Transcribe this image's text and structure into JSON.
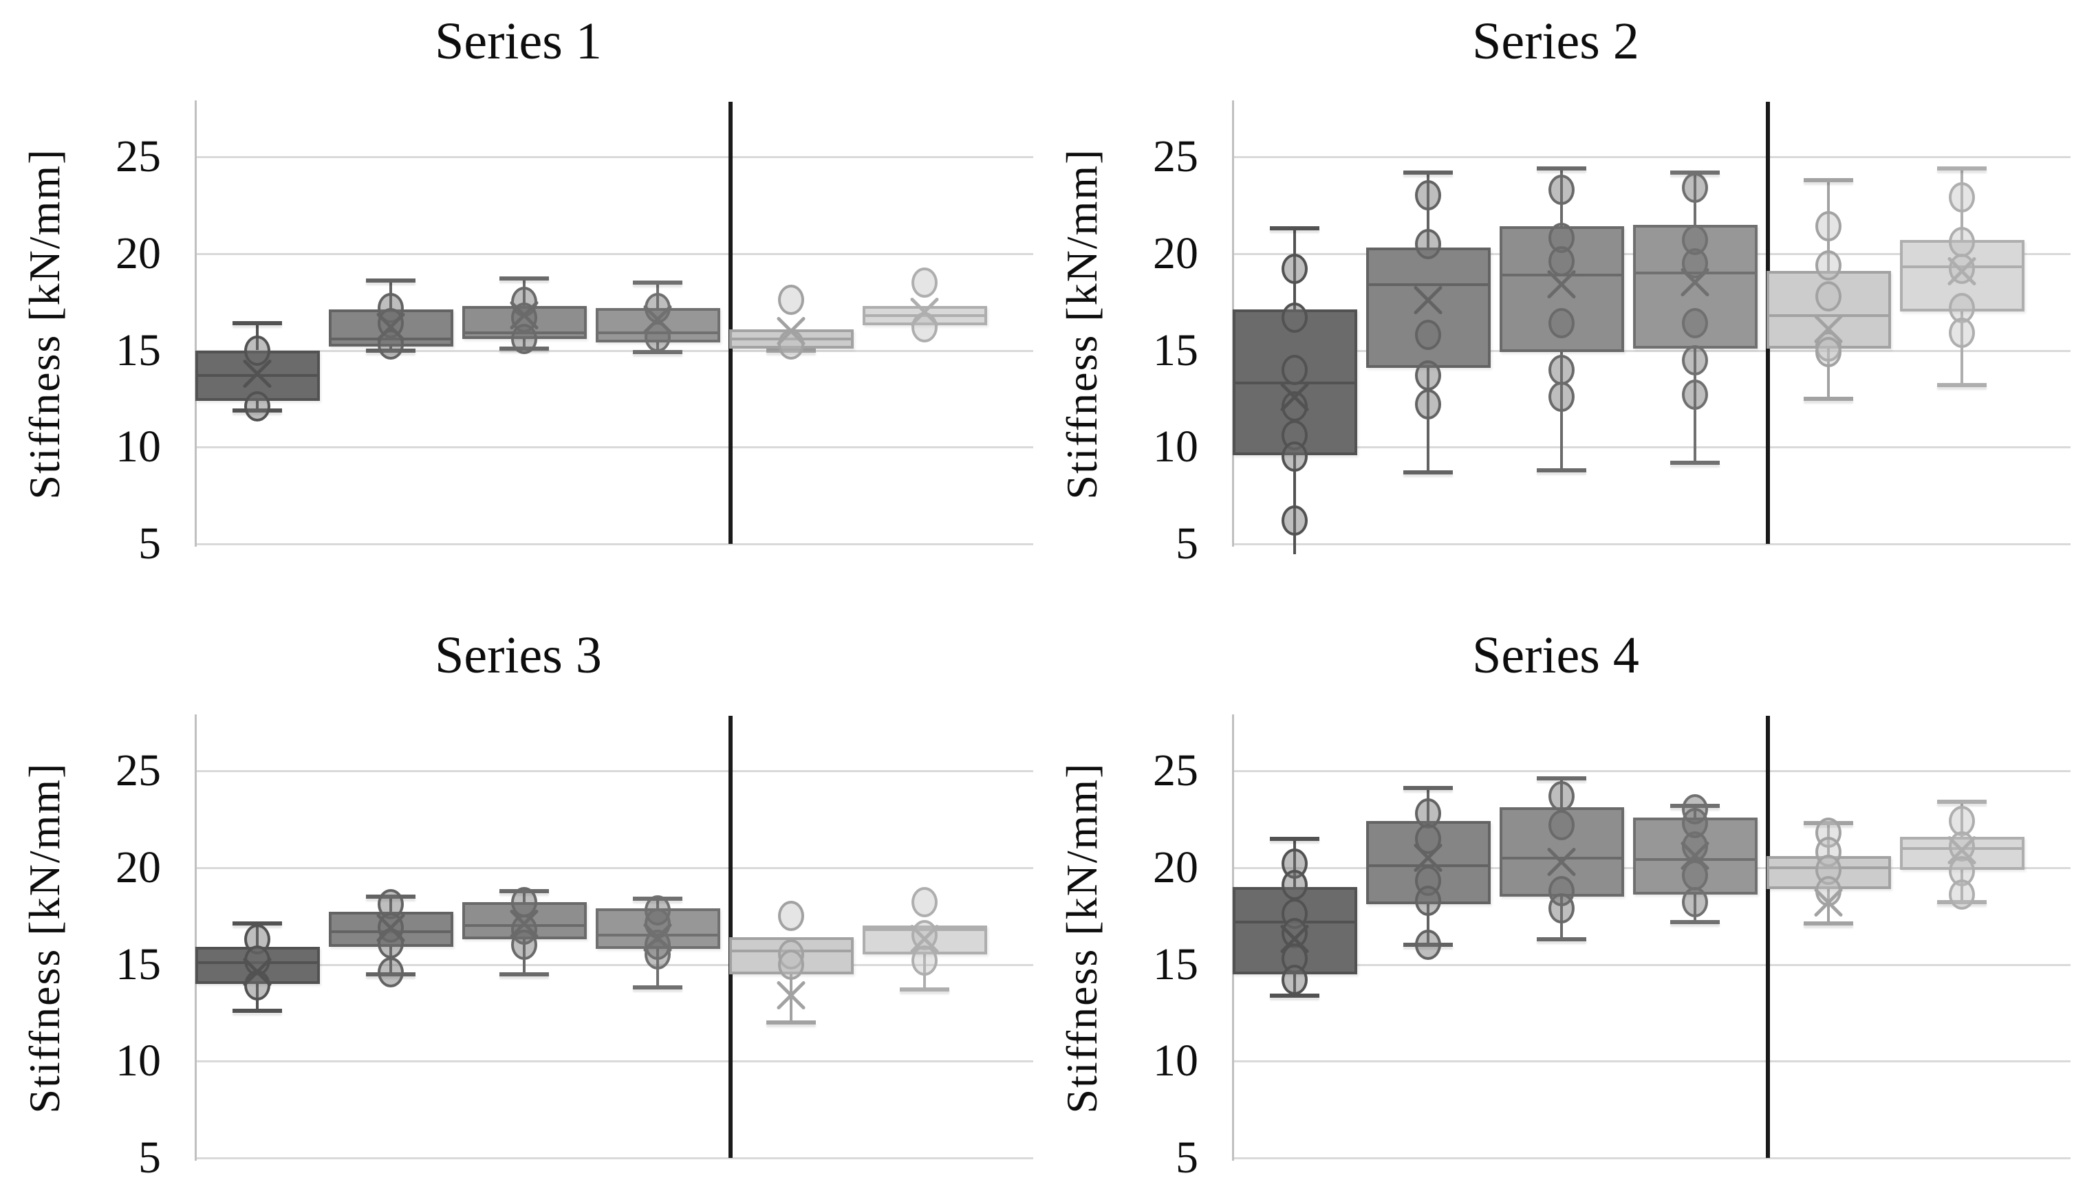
{
  "style": {
    "background": "#ffffff",
    "gridline_color": "#d9d9d9",
    "axis_color": "#c0c0c0",
    "divider_color": "#1a1a1a",
    "text_color": "#0d0d0d",
    "group_fills": [
      "#6b6b6b",
      "#858585",
      "#8e8e8e",
      "#979797",
      "#cccccc",
      "#d8d8d8"
    ],
    "group_strokes": [
      "#525252",
      "#636363",
      "#6a6a6a",
      "#707070",
      "#a2a2a2",
      "#aeaeae"
    ],
    "point_fills": [
      "rgba(110,110,110,0.45)",
      "rgba(110,110,110,0.45)",
      "rgba(110,110,110,0.45)",
      "rgba(110,110,110,0.45)",
      "rgba(190,190,190,0.40)",
      "rgba(190,190,190,0.40)"
    ]
  },
  "chart_data": [
    {
      "type": "boxplot",
      "title": "Series 1",
      "ylabel": "Stiffness [kN/mm]",
      "ylim": [
        4.4,
        27.9
      ],
      "y_ticks": [
        25,
        20,
        15,
        10,
        5
      ],
      "grid": true,
      "legend": "none",
      "divider_after_group": 4,
      "groups": [
        {
          "whisker_high": 16.4,
          "q3": 15.0,
          "median": 13.7,
          "mean": 13.8,
          "q1": 12.4,
          "whisker_low": 11.9,
          "points": [
            15.0,
            12.1
          ]
        },
        {
          "whisker_high": 18.6,
          "q3": 17.1,
          "median": 15.6,
          "mean": 16.2,
          "q1": 15.2,
          "whisker_low": 15.0,
          "points": [
            17.2,
            16.4,
            15.3
          ]
        },
        {
          "whisker_high": 18.7,
          "q3": 17.3,
          "median": 15.9,
          "mean": 16.8,
          "q1": 15.6,
          "whisker_low": 15.1,
          "points": [
            17.5,
            16.7,
            15.6
          ]
        },
        {
          "whisker_high": 18.5,
          "q3": 17.2,
          "median": 15.9,
          "mean": 16.6,
          "q1": 15.4,
          "whisker_low": 14.9,
          "points": [
            17.2,
            15.7
          ]
        },
        {
          "whisker_high": 16.1,
          "q3": 16.1,
          "median": 15.6,
          "mean": 16.0,
          "q1": 15.1,
          "whisker_low": 15.0,
          "points": [
            17.6,
            15.3
          ]
        },
        {
          "whisker_high": 17.3,
          "q3": 17.3,
          "median": 16.8,
          "mean": 17.0,
          "q1": 16.3,
          "whisker_low": 16.3,
          "points": [
            18.5,
            16.2
          ]
        }
      ]
    },
    {
      "type": "boxplot",
      "title": "Series 2",
      "ylabel": "Stiffness [kN/mm]",
      "ylim": [
        4.4,
        27.9
      ],
      "y_ticks": [
        25,
        20,
        15,
        10,
        5
      ],
      "grid": true,
      "legend": "none",
      "divider_after_group": 4,
      "groups": [
        {
          "whisker_high": 21.3,
          "q3": 17.1,
          "median": 13.3,
          "mean": 12.6,
          "q1": 9.6,
          "whisker_low": 4.6,
          "whisker_low_clipped": true,
          "points": [
            19.2,
            16.7,
            14.0,
            12.1,
            10.6,
            9.5,
            6.2
          ]
        },
        {
          "whisker_high": 24.2,
          "q3": 20.3,
          "median": 18.4,
          "mean": 17.6,
          "q1": 14.1,
          "whisker_low": 8.7,
          "points": [
            23.0,
            20.5,
            15.8,
            13.7,
            12.2
          ]
        },
        {
          "whisker_high": 24.4,
          "q3": 21.4,
          "median": 18.9,
          "mean": 18.4,
          "q1": 14.9,
          "whisker_low": 8.8,
          "points": [
            23.3,
            20.8,
            19.6,
            16.4,
            14.0,
            12.6
          ]
        },
        {
          "whisker_high": 24.2,
          "q3": 21.5,
          "median": 19.0,
          "mean": 18.5,
          "q1": 15.1,
          "whisker_low": 9.2,
          "points": [
            23.4,
            20.7,
            19.5,
            16.4,
            14.5,
            12.7
          ]
        },
        {
          "whisker_high": 23.8,
          "q3": 19.1,
          "median": 16.8,
          "mean": 16.1,
          "q1": 15.1,
          "whisker_low": 12.5,
          "points": [
            21.4,
            19.4,
            17.8,
            15.2,
            14.9
          ]
        },
        {
          "whisker_high": 24.4,
          "q3": 20.7,
          "median": 19.3,
          "mean": 19.1,
          "q1": 17.0,
          "whisker_low": 13.2,
          "points": [
            22.9,
            20.6,
            19.2,
            17.2,
            15.9
          ]
        }
      ]
    },
    {
      "type": "boxplot",
      "title": "Series 3",
      "ylabel": "Stiffness [kN/mm]",
      "ylim": [
        4.4,
        27.9
      ],
      "y_ticks": [
        25,
        20,
        15,
        10,
        5
      ],
      "grid": true,
      "legend": "none",
      "divider_after_group": 4,
      "groups": [
        {
          "whisker_high": 17.1,
          "q3": 15.9,
          "median": 15.1,
          "mean": 14.6,
          "q1": 14.0,
          "whisker_low": 12.6,
          "points": [
            16.3,
            15.2,
            13.9
          ]
        },
        {
          "whisker_high": 18.5,
          "q3": 17.7,
          "median": 16.7,
          "mean": 16.9,
          "q1": 15.9,
          "whisker_low": 14.5,
          "points": [
            18.1,
            16.9,
            16.1,
            14.6
          ]
        },
        {
          "whisker_high": 18.8,
          "q3": 18.2,
          "median": 17.0,
          "mean": 17.1,
          "q1": 16.3,
          "whisker_low": 14.5,
          "points": [
            18.2,
            16.8,
            16.0
          ]
        },
        {
          "whisker_high": 18.4,
          "q3": 17.9,
          "median": 16.5,
          "mean": 16.4,
          "q1": 15.8,
          "whisker_low": 13.8,
          "points": [
            17.8,
            17.1,
            16.0,
            15.5
          ]
        },
        {
          "whisker_high": 16.4,
          "q3": 16.4,
          "median": 15.7,
          "mean": 13.4,
          "q1": 14.5,
          "whisker_low": 12.0,
          "points": [
            17.5,
            15.5,
            15.0
          ]
        },
        {
          "whisker_high": 17.0,
          "q3": 17.0,
          "median": 16.8,
          "mean": 16.3,
          "q1": 15.5,
          "whisker_low": 13.7,
          "points": [
            18.2,
            16.5,
            15.2
          ]
        }
      ]
    },
    {
      "type": "boxplot",
      "title": "Series 4",
      "ylabel": "Stiffness [kN/mm]",
      "ylim": [
        4.4,
        27.9
      ],
      "y_ticks": [
        25,
        20,
        15,
        10,
        5
      ],
      "grid": true,
      "legend": "none",
      "divider_after_group": 4,
      "groups": [
        {
          "whisker_high": 21.5,
          "q3": 19.0,
          "median": 17.2,
          "mean": 16.3,
          "q1": 14.5,
          "whisker_low": 13.4,
          "points": [
            20.2,
            19.1,
            17.6,
            16.6,
            15.3,
            14.2
          ]
        },
        {
          "whisker_high": 24.1,
          "q3": 22.4,
          "median": 20.1,
          "mean": 20.5,
          "q1": 18.1,
          "whisker_low": 16.0,
          "points": [
            22.8,
            21.5,
            19.3,
            18.3,
            16.0
          ]
        },
        {
          "whisker_high": 24.6,
          "q3": 23.1,
          "median": 20.5,
          "mean": 20.3,
          "q1": 18.5,
          "whisker_low": 16.3,
          "points": [
            23.7,
            22.2,
            18.8,
            17.9
          ]
        },
        {
          "whisker_high": 23.2,
          "q3": 22.6,
          "median": 20.4,
          "mean": 20.6,
          "q1": 18.6,
          "whisker_low": 17.2,
          "points": [
            23.0,
            22.3,
            21.1,
            19.6,
            18.2
          ]
        },
        {
          "whisker_high": 22.3,
          "q3": 20.6,
          "median": 20.0,
          "mean": 18.2,
          "q1": 18.9,
          "whisker_low": 17.1,
          "points": [
            21.8,
            20.8,
            19.9,
            18.8
          ]
        },
        {
          "whisker_high": 23.4,
          "q3": 21.6,
          "median": 21.0,
          "mean": 20.9,
          "q1": 19.9,
          "whisker_low": 18.2,
          "points": [
            22.4,
            21.1,
            19.8,
            18.6
          ]
        }
      ]
    }
  ]
}
